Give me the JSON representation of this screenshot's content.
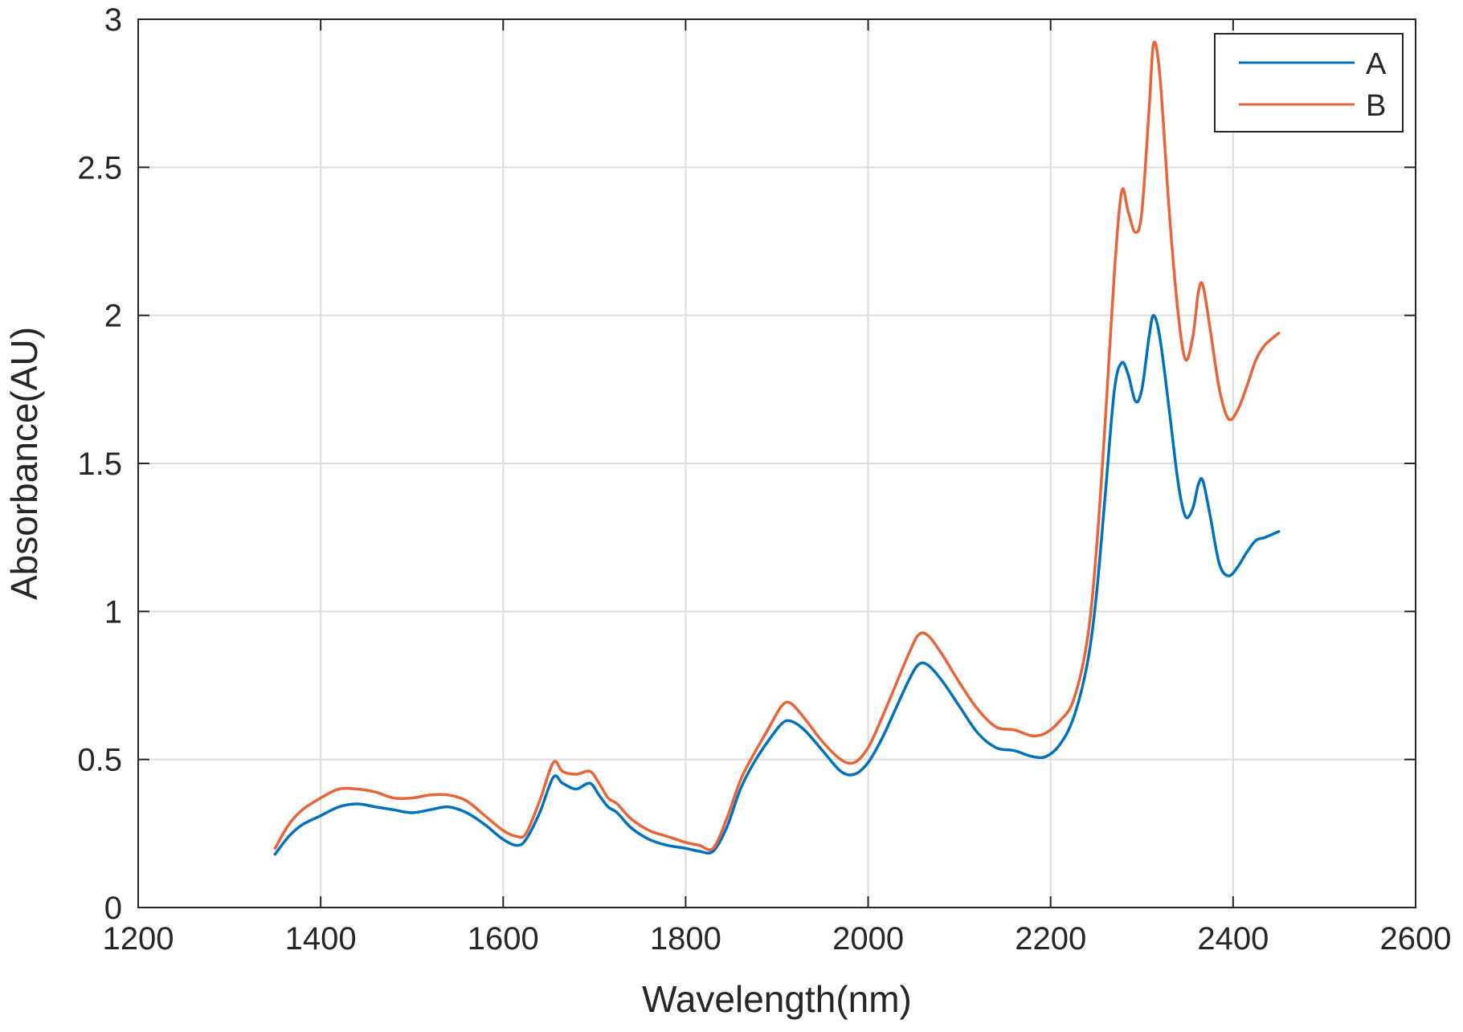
{
  "chart_data": {
    "type": "line",
    "title": "",
    "xlabel": "Wavelength(nm)",
    "ylabel": "Absorbance(AU)",
    "xlim": [
      1200,
      2600
    ],
    "ylim": [
      0,
      3
    ],
    "xticks": [
      1200,
      1400,
      1600,
      1800,
      2000,
      2200,
      2400,
      2600
    ],
    "yticks": [
      0,
      0.5,
      1,
      1.5,
      2,
      2.5,
      3
    ],
    "xtick_labels": [
      "1200",
      "1400",
      "1600",
      "1800",
      "2000",
      "2200",
      "2400",
      "2600"
    ],
    "ytick_labels": [
      "0",
      "0.5",
      "1",
      "1.5",
      "2",
      "2.5",
      "3"
    ],
    "grid": true,
    "legend_position": "top-right",
    "colors": {
      "A": "#0072BD",
      "B": "#E8643A",
      "grid": "#dcdcdc",
      "axis": "#262626"
    },
    "series": [
      {
        "name": "A",
        "x": [
          1350,
          1365,
          1380,
          1400,
          1420,
          1440,
          1460,
          1480,
          1500,
          1520,
          1540,
          1560,
          1580,
          1600,
          1615,
          1625,
          1640,
          1655,
          1665,
          1680,
          1695,
          1705,
          1715,
          1725,
          1740,
          1760,
          1780,
          1800,
          1815,
          1830,
          1845,
          1860,
          1875,
          1890,
          1905,
          1915,
          1930,
          1950,
          1970,
          1985,
          2000,
          2015,
          2030,
          2045,
          2055,
          2065,
          2080,
          2100,
          2120,
          2140,
          2160,
          2180,
          2195,
          2210,
          2225,
          2240,
          2250,
          2260,
          2270,
          2278,
          2285,
          2293,
          2300,
          2308,
          2313,
          2320,
          2330,
          2340,
          2348,
          2356,
          2362,
          2367,
          2375,
          2385,
          2395,
          2405,
          2415,
          2425,
          2435,
          2450
        ],
        "values": [
          0.18,
          0.24,
          0.28,
          0.31,
          0.34,
          0.35,
          0.34,
          0.33,
          0.32,
          0.33,
          0.34,
          0.32,
          0.28,
          0.23,
          0.21,
          0.23,
          0.32,
          0.44,
          0.42,
          0.4,
          0.42,
          0.38,
          0.34,
          0.32,
          0.27,
          0.23,
          0.21,
          0.2,
          0.19,
          0.19,
          0.27,
          0.4,
          0.49,
          0.56,
          0.62,
          0.63,
          0.6,
          0.53,
          0.46,
          0.45,
          0.49,
          0.57,
          0.67,
          0.77,
          0.82,
          0.82,
          0.77,
          0.68,
          0.59,
          0.54,
          0.53,
          0.51,
          0.51,
          0.55,
          0.64,
          0.82,
          1.05,
          1.4,
          1.75,
          1.84,
          1.8,
          1.71,
          1.75,
          1.93,
          2.0,
          1.92,
          1.68,
          1.43,
          1.32,
          1.35,
          1.43,
          1.44,
          1.32,
          1.16,
          1.12,
          1.15,
          1.2,
          1.24,
          1.25,
          1.27
        ]
      },
      {
        "name": "B",
        "x": [
          1350,
          1365,
          1380,
          1400,
          1420,
          1440,
          1460,
          1480,
          1500,
          1520,
          1540,
          1560,
          1580,
          1600,
          1615,
          1625,
          1640,
          1655,
          1665,
          1680,
          1695,
          1705,
          1715,
          1725,
          1740,
          1760,
          1780,
          1800,
          1815,
          1830,
          1845,
          1860,
          1875,
          1890,
          1905,
          1915,
          1930,
          1950,
          1970,
          1985,
          2000,
          2015,
          2030,
          2045,
          2055,
          2065,
          2080,
          2100,
          2120,
          2140,
          2160,
          2180,
          2195,
          2210,
          2225,
          2240,
          2250,
          2260,
          2270,
          2278,
          2285,
          2293,
          2300,
          2308,
          2313,
          2320,
          2330,
          2340,
          2348,
          2356,
          2362,
          2367,
          2375,
          2385,
          2395,
          2405,
          2415,
          2425,
          2435,
          2450
        ],
        "values": [
          0.2,
          0.28,
          0.33,
          0.37,
          0.4,
          0.4,
          0.39,
          0.37,
          0.37,
          0.38,
          0.38,
          0.36,
          0.31,
          0.26,
          0.24,
          0.25,
          0.36,
          0.49,
          0.46,
          0.45,
          0.46,
          0.42,
          0.37,
          0.35,
          0.3,
          0.26,
          0.24,
          0.22,
          0.21,
          0.2,
          0.3,
          0.43,
          0.52,
          0.6,
          0.68,
          0.69,
          0.64,
          0.56,
          0.5,
          0.49,
          0.54,
          0.64,
          0.75,
          0.86,
          0.92,
          0.92,
          0.86,
          0.76,
          0.67,
          0.61,
          0.6,
          0.58,
          0.59,
          0.63,
          0.7,
          0.9,
          1.2,
          1.65,
          2.15,
          2.42,
          2.35,
          2.28,
          2.35,
          2.7,
          2.92,
          2.8,
          2.35,
          2.0,
          1.85,
          1.93,
          2.08,
          2.1,
          1.95,
          1.75,
          1.65,
          1.68,
          1.76,
          1.85,
          1.9,
          1.94
        ]
      }
    ]
  }
}
